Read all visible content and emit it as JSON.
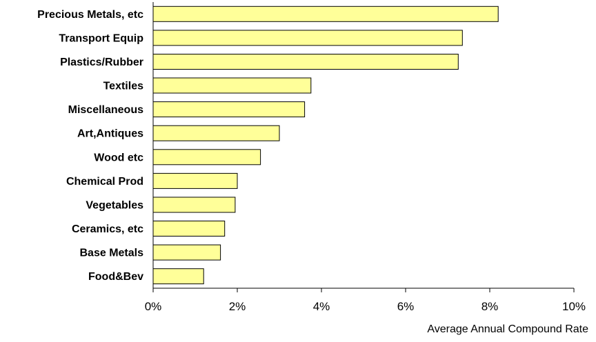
{
  "chart_data": {
    "type": "bar",
    "orientation": "horizontal",
    "categories": [
      "Precious Metals, etc",
      "Transport Equip",
      "Plastics/Rubber",
      "Textiles",
      "Miscellaneous",
      "Art,Antiques",
      "Wood etc",
      "Chemical Prod",
      "Vegetables",
      "Ceramics, etc",
      "Base Metals",
      "Food&Bev"
    ],
    "values": [
      8.2,
      7.35,
      7.25,
      3.75,
      3.6,
      3.0,
      2.55,
      2.0,
      1.95,
      1.7,
      1.6,
      1.2
    ],
    "title": "",
    "xlabel": "Average Annual Compound Rate",
    "ylabel": "",
    "xlim": [
      0,
      10
    ],
    "xticks": [
      0,
      2,
      4,
      6,
      8,
      10
    ],
    "xtick_labels": [
      "0%",
      "2%",
      "4%",
      "6%",
      "8%",
      "10%"
    ],
    "grid": false,
    "legend": "none",
    "colors": {
      "bar_fill": "#ffff99",
      "bar_stroke": "#000000",
      "axis": "#000000"
    }
  }
}
